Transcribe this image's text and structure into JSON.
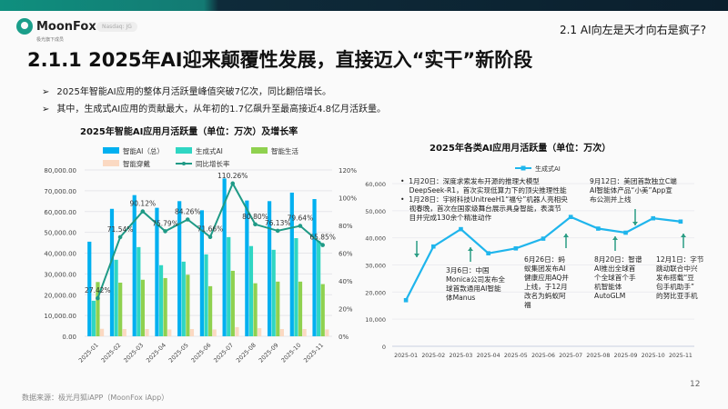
{
  "header": {
    "logo_text": "MoonFox",
    "logo_sub": "极光旗下成员",
    "badge": "Nasdaq: JG",
    "section": "2.1 AI向左是天才向右是疯子?"
  },
  "title": "2.1.1 2025年AI迎来颠覆性发展，直接迈入“实干”新阶段",
  "bullets": [
    "2025年智能AI应用的整体月活跃量峰值突破7亿次，同比翻倍增长。",
    "其中，生成式AI应用的贡献最大，从年初的1.7亿飙升至最高接近4.8亿月活跃量。"
  ],
  "bullet_icon": "arrowhead-right",
  "chart_data": [
    {
      "type": "bar",
      "title": "2025年智能AI应用月活跃量（单位：万次）及增长率",
      "categories": [
        "2025-01",
        "2025-02",
        "2025-03",
        "2025-04",
        "2025-05",
        "2025-06",
        "2025-07",
        "2025-08",
        "2025-09",
        "2025-10",
        "2025-11"
      ],
      "ylim": [
        0,
        80000
      ],
      "y2lim": [
        0,
        120
      ],
      "yticks": [
        "0.00",
        "10,000.00",
        "20,000.00",
        "30,000.00",
        "40,000.00",
        "50,000.00",
        "60,000.00",
        "70,000.00",
        "80,000.00"
      ],
      "y2ticks": [
        "0%",
        "20%",
        "40%",
        "60%",
        "80%",
        "100%",
        "120%"
      ],
      "grid": true,
      "legend": "top",
      "series": [
        {
          "name": "智能AI（总）",
          "color": "#00b0f0",
          "values": [
            45500,
            61300,
            67900,
            61800,
            65000,
            60600,
            75900,
            65300,
            65000,
            69100,
            66000
          ]
        },
        {
          "name": "生成式AI",
          "color": "#2fd6c3",
          "values": [
            17100,
            36800,
            42900,
            34200,
            35900,
            39400,
            47700,
            43400,
            41600,
            47200,
            45900
          ]
        },
        {
          "name": "智能生活",
          "color": "#8fd14f",
          "values": [
            26100,
            25800,
            27200,
            28000,
            29600,
            24100,
            31500,
            25500,
            26300,
            26300,
            25100
          ]
        },
        {
          "name": "智能穿戴",
          "color": "#fbd9c2",
          "values": [
            3600,
            3500,
            3500,
            3300,
            3500,
            3300,
            4400,
            3900,
            3500,
            3500,
            3300
          ]
        },
        {
          "name": "同比增长率",
          "color": "#1f9a86",
          "type": "line",
          "axis": "right",
          "values": [
            27.42,
            71.54,
            90.12,
            75.79,
            84.26,
            71.66,
            110.26,
            80.8,
            76.13,
            79.64,
            65.85
          ],
          "labels": [
            "27.42%",
            "71.54%",
            "90.12%",
            "75.79%",
            "84.26%",
            "71.66%",
            "110.26%",
            "80.80%",
            "76.13%",
            "79.64%",
            "65.85%"
          ]
        }
      ]
    },
    {
      "type": "line",
      "title": "2025年各类AI应用月活跃量（单位：万次）",
      "categories": [
        "2025-01",
        "2025-02",
        "2025-03",
        "2025-04",
        "2025-05",
        "2025-06",
        "2025-07",
        "2025-08",
        "2025-09",
        "2025-10",
        "2025-11"
      ],
      "ylim": [
        0,
        60000
      ],
      "yticks": [
        "0",
        "10,000",
        "20,000",
        "30,000",
        "40,000",
        "50,000",
        "60,000"
      ],
      "grid": true,
      "legend": "top",
      "series": [
        {
          "name": "生成式AI",
          "color": "#1fb5ec",
          "values": [
            17000,
            36800,
            43200,
            34300,
            36100,
            39700,
            47700,
            43400,
            41900,
            47200,
            46000
          ]
        }
      ],
      "annotations": [
        {
          "lines": [
            "•  1月20日：深度求索发布开源的推理大模型",
            "    DeepSeek-R1，首次实现低算力下的顶尖推理性能",
            "•  1月28日：宇树科技UnitreeH1“福兮”机器人亮相央",
            "    视春晚，首次在国家级舞台展示具身智能，表演节",
            "    目并完成130余个精准动作"
          ]
        },
        {
          "lines": [
            "9月12日：美团首款独立C端",
            "AI智能体产品“小美”App宣",
            "布公测并上线"
          ]
        },
        {
          "lines": [
            "3月6日：中国",
            "Monica公司发布全",
            "球首款通用AI智能",
            "体Manus"
          ]
        },
        {
          "lines": [
            "6月26日：蚂",
            "蚁集团发布AI",
            "健康应用AQ并",
            "上线，于12月",
            "改名为蚂蚁阿",
            "福"
          ]
        },
        {
          "lines": [
            "8月20日：智谱",
            "AI推出全球首",
            "个全球首个手",
            "机智能体",
            "AutoGLM"
          ]
        },
        {
          "lines": [
            "12月1日：字节",
            "跳动联合中兴",
            "发布搭载“豆",
            "包手机助手”",
            "的努比亚手机"
          ]
        }
      ]
    }
  ],
  "footer": {
    "source": "数据来源：极光月狐iAPP（MoonFox iApp）",
    "page": "12"
  }
}
